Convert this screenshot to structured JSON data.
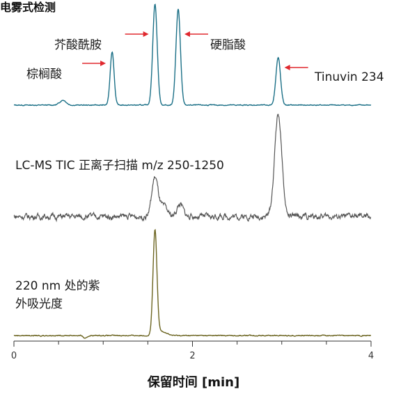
{
  "chart_data": {
    "type": "line",
    "title": "电雾式检测",
    "xlabel": "保留时间 [min]",
    "xlim": [
      0,
      4
    ],
    "x_ticks": [
      {
        "value": 0,
        "label": "0"
      },
      {
        "value": 2,
        "label": "2"
      },
      {
        "value": 4,
        "label": "4"
      }
    ],
    "x_minor_ticks": [
      0.5,
      1.0,
      1.5,
      2.5,
      3.0,
      3.5
    ],
    "colors": {
      "cad": "#1a6f86",
      "ms": "#555555",
      "uv": "#6b6420",
      "arrow": "#e0282e"
    },
    "traces": [
      {
        "key": "cad",
        "label": "",
        "peaks": [
          {
            "x": 0.55,
            "h": 0.05,
            "w": 0.035
          },
          {
            "x": 1.1,
            "h": 0.53,
            "w": 0.022
          },
          {
            "x": 1.58,
            "h": 1.0,
            "w": 0.025
          },
          {
            "x": 1.84,
            "h": 0.95,
            "w": 0.025
          },
          {
            "x": 2.96,
            "h": 0.47,
            "w": 0.026
          }
        ],
        "noise": 0.004
      },
      {
        "key": "ms",
        "label": "LC-MS TIC 正离子扫描 m/z 250-1250",
        "peaks": [
          {
            "x": 1.58,
            "h": 0.38,
            "w": 0.035
          },
          {
            "x": 1.68,
            "h": 0.09,
            "w": 0.04
          },
          {
            "x": 1.86,
            "h": 0.12,
            "w": 0.035
          },
          {
            "x": 2.96,
            "h": 1.0,
            "w": 0.04
          }
        ],
        "noise": 0.025
      },
      {
        "key": "uv",
        "label_lines": [
          "220 nm 处的紫",
          "外吸光度"
        ],
        "peaks": [
          {
            "x": 0.3,
            "h": -0.01,
            "w": 0.01
          },
          {
            "x": 0.8,
            "h": -0.03,
            "w": 0.02
          },
          {
            "x": 1.58,
            "h": 1.0,
            "w": 0.022
          },
          {
            "x": 1.66,
            "h": 0.04,
            "w": 0.05
          }
        ],
        "noise": 0.004
      }
    ],
    "annotations": [
      {
        "text": "棕榈酸",
        "peak_x": 1.1,
        "trace": "cad"
      },
      {
        "text": "芥酸酰胺",
        "peak_x": 1.58,
        "trace": "cad"
      },
      {
        "text": "硬脂酸",
        "peak_x": 1.84,
        "trace": "cad"
      },
      {
        "text": "Tinuvin 234",
        "peak_x": 2.96,
        "trace": "cad"
      }
    ]
  }
}
